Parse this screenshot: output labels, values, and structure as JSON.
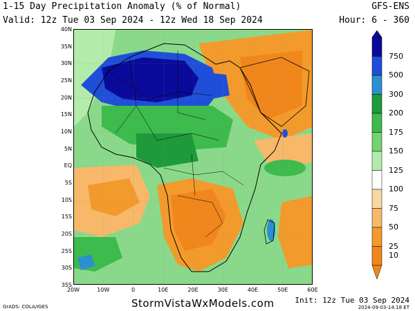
{
  "header": {
    "title": "1-15 Day Precipitation Anomaly (% of Normal)",
    "valid": "Valid: 12z Tue 03 Sep 2024 - 12z Wed 18 Sep 2024",
    "model": "GFS-ENS",
    "hour": "Hour: 6 - 360"
  },
  "map": {
    "region": "Africa",
    "lat_ticks": [
      "40N",
      "35N",
      "30N",
      "25N",
      "20N",
      "15N",
      "10N",
      "5N",
      "EQ",
      "5S",
      "10S",
      "15S",
      "20S",
      "25S",
      "30S",
      "35S"
    ],
    "lon_ticks": [
      "20W",
      "10W",
      "0",
      "10E",
      "20E",
      "30E",
      "40E",
      "50E",
      "60E"
    ],
    "lon_range": [
      -20,
      60
    ],
    "lat_range": [
      -35,
      40
    ]
  },
  "colorbar": {
    "labels": [
      "750",
      "500",
      "300",
      "200",
      "175",
      "150",
      "125",
      "100",
      "75",
      "50",
      "25",
      "10"
    ],
    "colors": [
      "#0a0a9a",
      "#1f4fd8",
      "#2b8fd0",
      "#1f9a3a",
      "#3dbb4d",
      "#72d46d",
      "#b3ecaa",
      "#ffffff",
      "#f7d9a0",
      "#f7b86a",
      "#f39a2c",
      "#f0861c"
    ]
  },
  "footer": {
    "grads": "GrADS: COLA/IGES",
    "site": "StormVistaWxModels.com",
    "init": "Init: 12z Tue 03 Sep 2024",
    "stamp": "2024-09-03-14:18 ET"
  }
}
